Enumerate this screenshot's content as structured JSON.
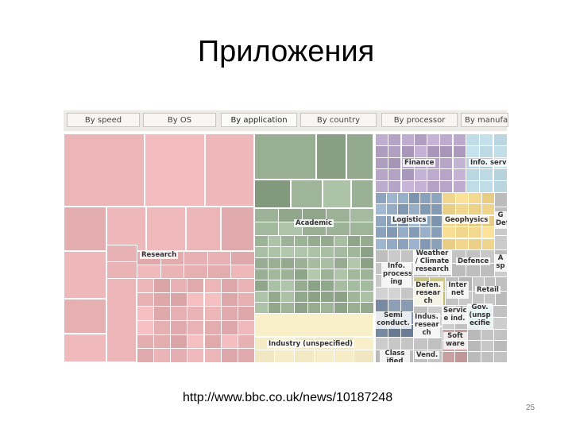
{
  "slide": {
    "title": "Приложения",
    "url": "http://www.bbc.co.uk/news/10187248",
    "page_number": "25"
  },
  "tabs": [
    {
      "label": "By speed",
      "active": false
    },
    {
      "label": "By OS",
      "active": false
    },
    {
      "label": "By application",
      "active": true
    },
    {
      "label": "By country",
      "active": false
    },
    {
      "label": "By processor",
      "active": false
    },
    {
      "label": "By manufac",
      "active": false
    }
  ],
  "treemap": {
    "colors": {
      "research": "#e8b1b4",
      "academic": "#9eb59a",
      "industry": "#f7eec8",
      "finance": "#b6a5c6",
      "info_services": "#b9d5df",
      "logistics": "#8fa6c0",
      "geophysics": "#f2d78f",
      "weather": "#c9c9c9",
      "gray": "#c4c4c4",
      "olive": "#c7c27a",
      "teal": "#7fc6c4"
    },
    "sections": [
      {
        "id": "research",
        "label": "Research"
      },
      {
        "id": "academic",
        "label": "Academic"
      },
      {
        "id": "industry",
        "label": "Industry (unspecified)"
      },
      {
        "id": "finance",
        "label": "Finance"
      },
      {
        "id": "info-serv",
        "label": "Info. serv"
      },
      {
        "id": "logistics",
        "label": "Logistics"
      },
      {
        "id": "geophysics",
        "label": "Geophysics"
      },
      {
        "id": "gov-defence",
        "label": "G Defe"
      },
      {
        "id": "info-processing",
        "label": "Info. process ing"
      },
      {
        "id": "weather",
        "label": "Weather / Climate research"
      },
      {
        "id": "defence",
        "label": "Defence"
      },
      {
        "id": "aerospace",
        "label": "A sp"
      },
      {
        "id": "defence-research",
        "label": "Defen. resear ch"
      },
      {
        "id": "internet",
        "label": "Inter net"
      },
      {
        "id": "retail",
        "label": "Retail"
      },
      {
        "id": "semiconductor",
        "label": "Semi conduct."
      },
      {
        "id": "industry-research",
        "label": "Indus. resear ch"
      },
      {
        "id": "service-ind",
        "label": "Servic e ind."
      },
      {
        "id": "gov-unspecified",
        "label": "Gov. (unsp ecifie"
      },
      {
        "id": "software",
        "label": "Soft ware"
      },
      {
        "id": "classified",
        "label": "Class ified"
      },
      {
        "id": "vendor",
        "label": "Vend."
      }
    ]
  }
}
